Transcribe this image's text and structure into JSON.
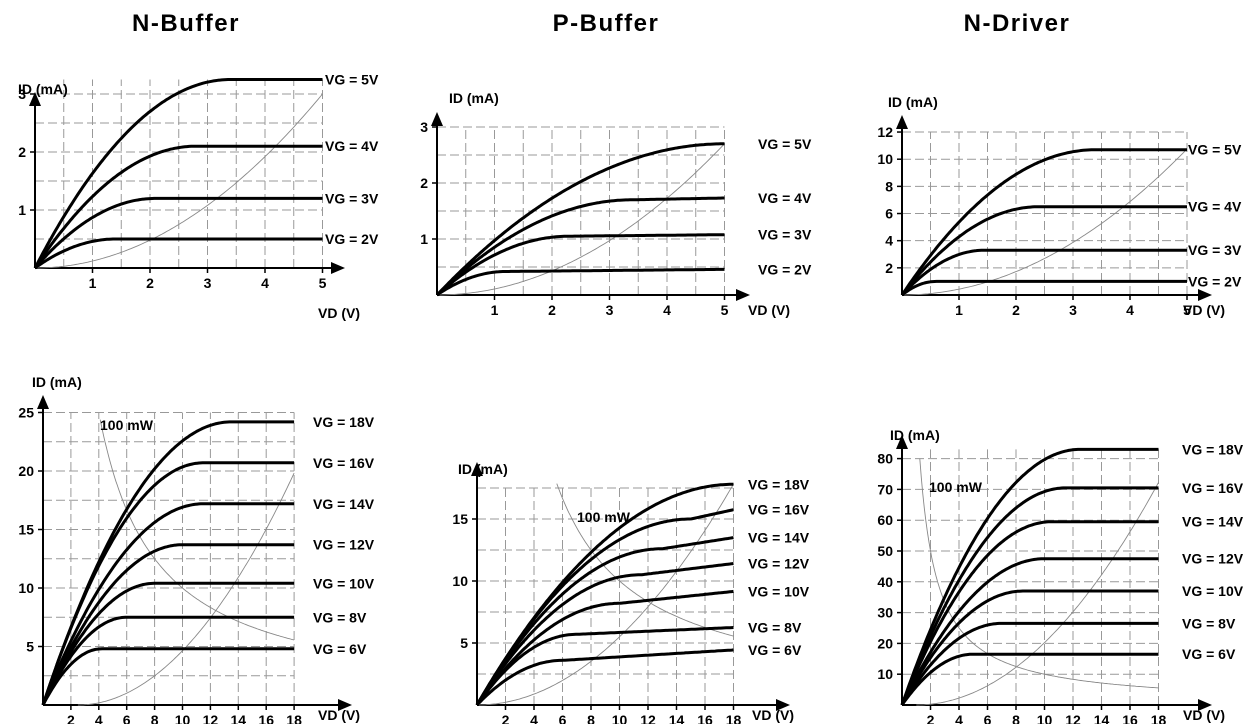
{
  "columns": [
    {
      "title": "N-Buffer"
    },
    {
      "title": "P-Buffer"
    },
    {
      "title": "N-Driver"
    }
  ],
  "colors": {
    "curve": "#000000",
    "grid": "#999999",
    "thin": "#888888"
  },
  "chart_data": [
    {
      "id": "n-buffer-low",
      "type": "line",
      "ylabel": "ID (mA)",
      "xlabel": "VD (V)",
      "xlim": [
        0,
        5.5
      ],
      "ylim": [
        0,
        3.3
      ],
      "xticks": [
        1,
        2,
        3,
        4,
        5
      ],
      "yticks": [
        1,
        2,
        3
      ],
      "grid_step_x": 0.5,
      "grid_step_y": 0.5,
      "grid": true,
      "series": [
        {
          "name": "VG = 5V",
          "vsat": 3.4,
          "isat": 3.25,
          "lambda": 0
        },
        {
          "name": "VG = 4V",
          "vsat": 2.8,
          "isat": 2.1,
          "lambda": 0
        },
        {
          "name": "VG = 3V",
          "vsat": 2.1,
          "isat": 1.2,
          "lambda": 0
        },
        {
          "name": "VG = 2V",
          "vsat": 1.4,
          "isat": 0.5,
          "lambda": 0
        }
      ],
      "boundary": {
        "k": 0.12
      }
    },
    {
      "id": "p-buffer-low",
      "type": "line",
      "ylabel": "ID (mA)",
      "xlabel": "VD (V)",
      "xlim": [
        0,
        5.5
      ],
      "ylim": [
        0,
        3.1
      ],
      "xticks": [
        1,
        2,
        3,
        4,
        5
      ],
      "yticks": [
        1,
        2,
        3
      ],
      "grid_step_x": 0.5,
      "grid_step_y": 0.5,
      "grid": true,
      "series": [
        {
          "name": "VG = 5V",
          "vsat": 5.0,
          "isat": 2.7,
          "lambda": 0
        },
        {
          "name": "VG = 4V",
          "vsat": 3.4,
          "isat": 1.7,
          "lambda": 0.02
        },
        {
          "name": "VG = 3V",
          "vsat": 2.3,
          "isat": 1.05,
          "lambda": 0.01
        },
        {
          "name": "VG = 2V",
          "vsat": 1.2,
          "isat": 0.42,
          "lambda": 0.01
        }
      ],
      "boundary": {
        "k": 0.108
      }
    },
    {
      "id": "n-driver-low",
      "type": "line",
      "ylabel": "ID (mA)",
      "xlabel": "VD (V)",
      "xlim": [
        0,
        5.5
      ],
      "ylim": [
        0,
        12
      ],
      "xticks": [
        1,
        2,
        3,
        4,
        5
      ],
      "yticks": [
        2,
        4,
        6,
        8,
        10,
        12
      ],
      "grid_step_x": 0.5,
      "grid_step_y": 2,
      "grid": true,
      "series": [
        {
          "name": "VG = 5V",
          "vsat": 3.4,
          "isat": 10.7,
          "lambda": 0
        },
        {
          "name": "VG = 4V",
          "vsat": 2.4,
          "isat": 6.5,
          "lambda": 0
        },
        {
          "name": "VG = 3V",
          "vsat": 1.45,
          "isat": 3.3,
          "lambda": 0
        },
        {
          "name": "VG = 2V",
          "vsat": 0.6,
          "isat": 1.0,
          "lambda": 0
        }
      ],
      "boundary": {
        "k": 0.43
      }
    },
    {
      "id": "n-buffer-high",
      "type": "line",
      "ylabel": "ID (mA)",
      "xlabel": "VD (V)",
      "xlim": [
        0,
        20
      ],
      "ylim": [
        0,
        25
      ],
      "xticks": [
        2,
        4,
        6,
        8,
        10,
        12,
        14,
        16,
        18
      ],
      "yticks": [
        5,
        10,
        15,
        20,
        25
      ],
      "grid_step_x": 2,
      "grid_step_y": 2.5,
      "grid": true,
      "series": [
        {
          "name": "VG = 18V",
          "vsat": 13.5,
          "isat": 24.2,
          "lambda": 0
        },
        {
          "name": "VG = 16V",
          "vsat": 11.5,
          "isat": 20.7,
          "lambda": 0
        },
        {
          "name": "VG = 14V",
          "vsat": 11.5,
          "isat": 17.2,
          "lambda": 0
        },
        {
          "name": "VG = 12V",
          "vsat": 10.0,
          "isat": 13.7,
          "lambda": 0
        },
        {
          "name": "VG = 10V",
          "vsat": 8.0,
          "isat": 10.4,
          "lambda": 0
        },
        {
          "name": "VG = 8V",
          "vsat": 6.0,
          "isat": 7.5,
          "lambda": 0
        },
        {
          "name": "VG = 6V",
          "vsat": 4.2,
          "isat": 4.8,
          "lambda": 0
        }
      ],
      "power": {
        "label": "100 mW",
        "p": 100,
        "xmin": 4.1
      },
      "boundary": {
        "k": 0.0825,
        "x0": 2.5
      }
    },
    {
      "id": "p-buffer-high",
      "type": "line",
      "ylabel": "ID (mA)",
      "xlabel": "VD (V)",
      "xlim": [
        0,
        20
      ],
      "ylim": [
        0,
        18
      ],
      "xticks": [
        2,
        4,
        6,
        8,
        10,
        12,
        14,
        16,
        18
      ],
      "yticks": [
        5,
        10,
        15
      ],
      "grid_step_x": 2,
      "grid_step_y": 2.5,
      "grid": true,
      "series": [
        {
          "name": "VG = 18V",
          "vsat": 18,
          "isat": 17.8,
          "lambda": 0
        },
        {
          "name": "VG = 16V",
          "vsat": 15,
          "isat": 15.0,
          "lambda": 0.25
        },
        {
          "name": "VG = 14V",
          "vsat": 13,
          "isat": 12.6,
          "lambda": 0.18
        },
        {
          "name": "VG = 12V",
          "vsat": 11.5,
          "isat": 10.5,
          "lambda": 0.14
        },
        {
          "name": "VG = 10V",
          "vsat": 10,
          "isat": 8.2,
          "lambda": 0.12
        },
        {
          "name": "VG = 8V",
          "vsat": 7,
          "isat": 5.7,
          "lambda": 0.05
        },
        {
          "name": "VG = 6V",
          "vsat": 6,
          "isat": 3.6,
          "lambda": 0.07
        }
      ],
      "power": {
        "label": "100 mW",
        "p": 100,
        "xmin": 5.6
      },
      "boundary": {
        "k": 0.055
      }
    },
    {
      "id": "n-driver-high",
      "type": "line",
      "ylabel": "ID (mA)",
      "xlabel": "VD (V)",
      "xlim": [
        0,
        20
      ],
      "ylim": [
        0,
        85
      ],
      "xticks": [
        2,
        4,
        6,
        8,
        10,
        12,
        14,
        16,
        18
      ],
      "yticks": [
        10,
        20,
        30,
        40,
        50,
        60,
        70,
        80
      ],
      "grid_step_x": 2,
      "grid_step_y": 10,
      "grid": true,
      "series": [
        {
          "name": "VG = 18V",
          "vsat": 12.5,
          "isat": 83,
          "lambda": 0
        },
        {
          "name": "VG = 16V",
          "vsat": 11.5,
          "isat": 70.5,
          "lambda": 0
        },
        {
          "name": "VG = 14V",
          "vsat": 10.5,
          "isat": 59.5,
          "lambda": 0
        },
        {
          "name": "VG = 12V",
          "vsat": 10.0,
          "isat": 47.5,
          "lambda": 0
        },
        {
          "name": "VG = 10V",
          "vsat": 8.5,
          "isat": 37.0,
          "lambda": 0
        },
        {
          "name": "VG = 8V",
          "vsat": 7.0,
          "isat": 26.5,
          "lambda": 0
        },
        {
          "name": "VG = 6V",
          "vsat": 5.0,
          "isat": 16.5,
          "lambda": 0
        }
      ],
      "power": {
        "label": "100 mW",
        "p": 100,
        "xmin": 1.25
      },
      "boundary": {
        "k": 0.25,
        "x0": 1.0
      }
    }
  ]
}
